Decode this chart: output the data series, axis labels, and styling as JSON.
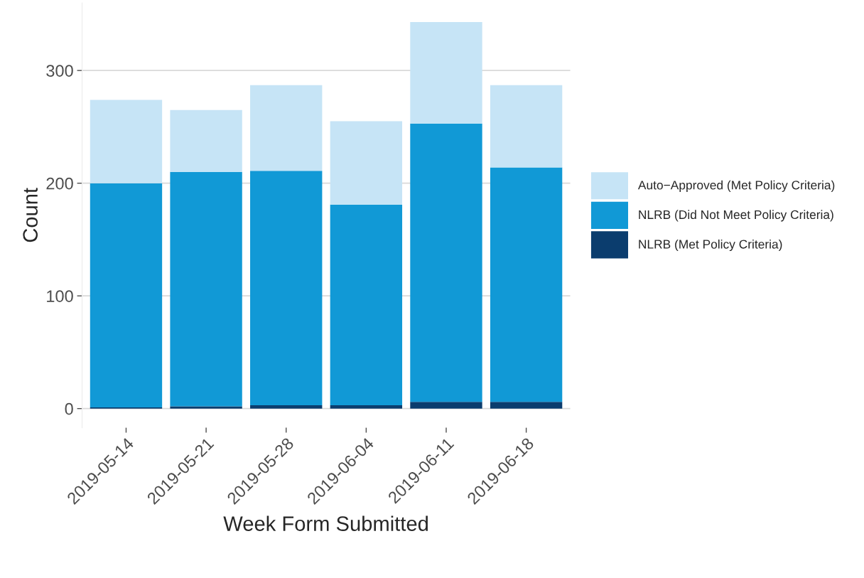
{
  "chart_data": {
    "type": "bar",
    "stacked": true,
    "xlabel": "Week Form Submitted",
    "ylabel": "Count",
    "categories": [
      "2019-05-14",
      "2019-05-21",
      "2019-05-28",
      "2019-06-04",
      "2019-06-11",
      "2019-06-18"
    ],
    "series": [
      {
        "name": "NLRB (Met Policy Criteria)",
        "color": "#0b3d6e",
        "values": [
          1,
          2,
          3,
          3,
          6,
          6
        ]
      },
      {
        "name": "NLRB (Did Not Meet Policy Criteria)",
        "color": "#1199d6",
        "values": [
          199,
          208,
          208,
          178,
          247,
          208
        ]
      },
      {
        "name": "Auto−Approved (Met Policy Criteria)",
        "color": "#c6e4f6",
        "values": [
          74,
          55,
          76,
          74,
          90,
          73
        ]
      }
    ],
    "ylim": [
      -17,
      360
    ],
    "yticks": [
      0,
      100,
      200,
      300
    ],
    "grid": "y",
    "legend": "right"
  }
}
